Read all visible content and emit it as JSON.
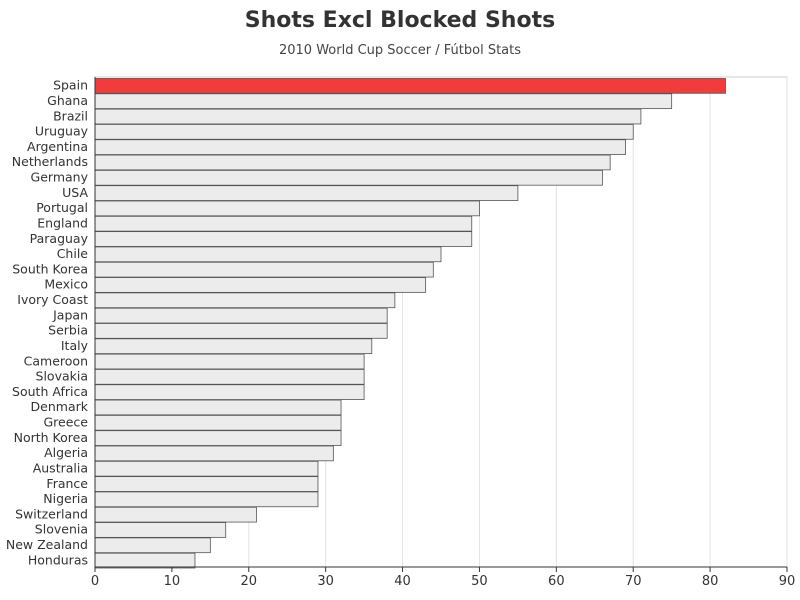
{
  "chart_data": {
    "type": "bar",
    "orientation": "horizontal",
    "title": "Shots Excl Blocked Shots",
    "subtitle": "2010 World Cup Soccer / Fútbol Stats",
    "xlabel": "",
    "ylabel": "",
    "xlim": [
      0,
      90
    ],
    "xticks": [
      0,
      10,
      20,
      30,
      40,
      50,
      60,
      70,
      80,
      90
    ],
    "grid": "vertical",
    "highlight_color": "#f03c3c",
    "bar_color": "#ececec",
    "bar_border_color": "#555555",
    "categories": [
      "Spain",
      "Ghana",
      "Brazil",
      "Uruguay",
      "Argentina",
      "Netherlands",
      "Germany",
      "USA",
      "Portugal",
      "England",
      "Paraguay",
      "Chile",
      "South Korea",
      "Mexico",
      "Ivory Coast",
      "Japan",
      "Serbia",
      "Italy",
      "Cameroon",
      "Slovakia",
      "South Africa",
      "Denmark",
      "Greece",
      "North Korea",
      "Algeria",
      "Australia",
      "France",
      "Nigeria",
      "Switzerland",
      "Slovenia",
      "New Zealand",
      "Honduras"
    ],
    "values": [
      82,
      75,
      71,
      70,
      69,
      67,
      66,
      55,
      50,
      49,
      49,
      45,
      44,
      43,
      39,
      38,
      38,
      36,
      35,
      35,
      35,
      32,
      32,
      32,
      31,
      29,
      29,
      29,
      21,
      17,
      15,
      13
    ],
    "highlighted": [
      "Spain"
    ]
  }
}
